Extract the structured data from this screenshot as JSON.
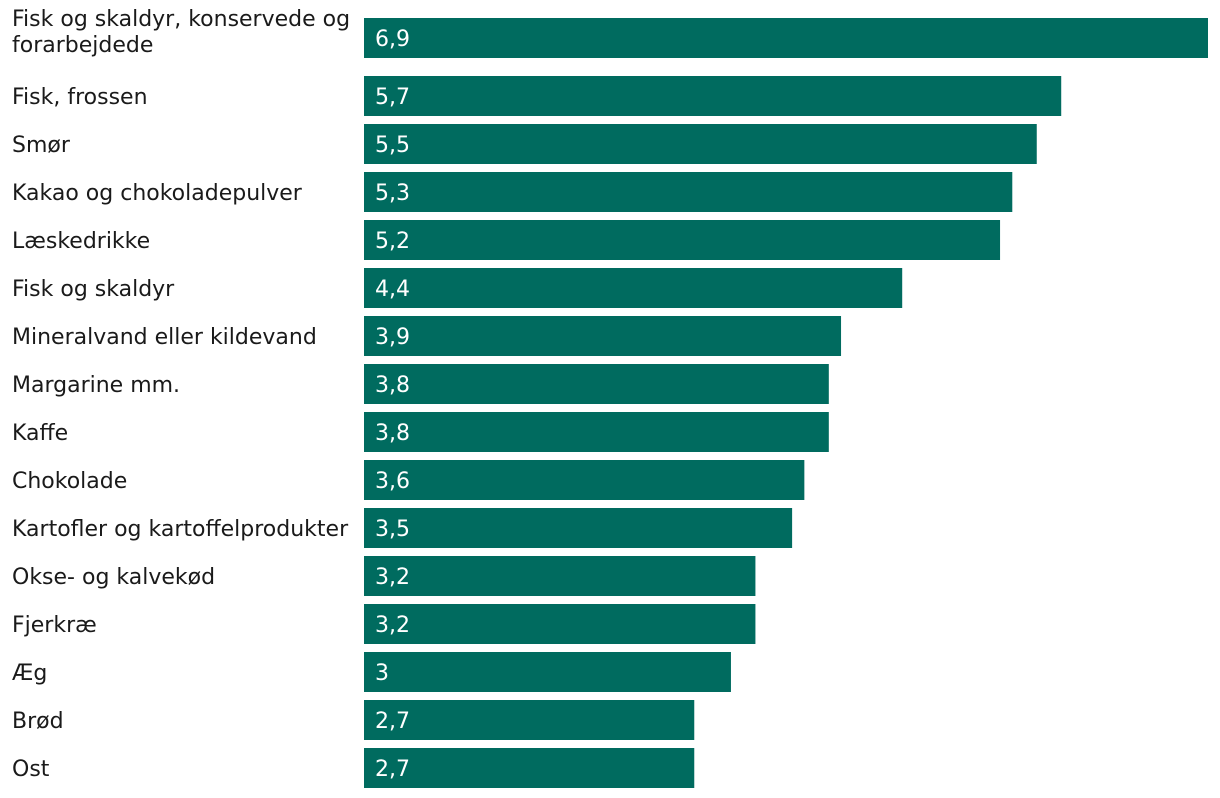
{
  "chart_data": {
    "type": "bar",
    "orientation": "horizontal",
    "categories": [
      "Fisk og skaldyr, konservede og forarbejdede",
      "Fisk, frossen",
      "Smør",
      "Kakao og chokoladepulver",
      "Læskedrikke",
      "Fisk og skaldyr",
      "Mineralvand eller kildevand",
      "Margarine mm.",
      "Kaffe",
      "Chokolade",
      "Kartofler og kartoffelprodukter",
      "Okse- og kalvekød",
      "Fjerkræ",
      "Æg",
      "Brød",
      "Ost"
    ],
    "category_lines": [
      [
        "Fisk og skaldyr, konservede og",
        "forarbejdede"
      ]
    ],
    "values": [
      6.9,
      5.7,
      5.5,
      5.3,
      5.2,
      4.4,
      3.9,
      3.8,
      3.8,
      3.6,
      3.5,
      3.2,
      3.2,
      3,
      2.7,
      2.7
    ],
    "value_labels": [
      "6,9",
      "5,7",
      "5,5",
      "5,3",
      "5,2",
      "4,4",
      "3,9",
      "3,8",
      "3,8",
      "3,6",
      "3,5",
      "3,2",
      "3,2",
      "3",
      "2,7",
      "2,7"
    ],
    "title": "",
    "xlabel": "",
    "ylabel": "",
    "xlim": [
      0,
      6.9
    ],
    "grid": false,
    "colors": {
      "bar": "#006b5f",
      "value_text": "#ffffff",
      "label_text": "#1a1a1a"
    }
  }
}
